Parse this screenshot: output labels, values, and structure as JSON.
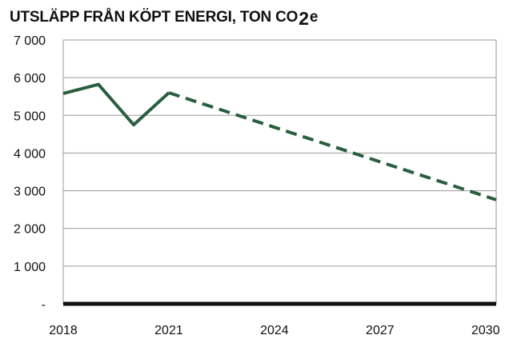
{
  "title": {
    "main": "UTSLÄPP FRÅN KÖPT ENERGI, TON CO",
    "subscript": "2",
    "suffix": "e"
  },
  "chart_data": {
    "type": "line",
    "title": "UTSLÄPP FRÅN KÖPT ENERGI, TON CO2e",
    "xlabel": "",
    "ylabel": "",
    "xlim": [
      2018,
      2030.3
    ],
    "ylim": [
      0,
      7000
    ],
    "grid": true,
    "x_ticks": [
      "2018",
      "2021",
      "2024",
      "2027",
      "2030"
    ],
    "y_ticks": [
      "-",
      "1 000",
      "2 000",
      "3 000",
      "4 000",
      "5 000",
      "6 000",
      "7 000"
    ],
    "series": [
      {
        "style": "solid",
        "color": "#2a5e3f",
        "x": [
          2018,
          2019,
          2020,
          2021
        ],
        "y": [
          5580,
          5820,
          4750,
          5600
        ]
      },
      {
        "style": "dashed",
        "color": "#2a5e3f",
        "x": [
          2021,
          2030.3
        ],
        "y": [
          5600,
          2760
        ]
      }
    ]
  }
}
